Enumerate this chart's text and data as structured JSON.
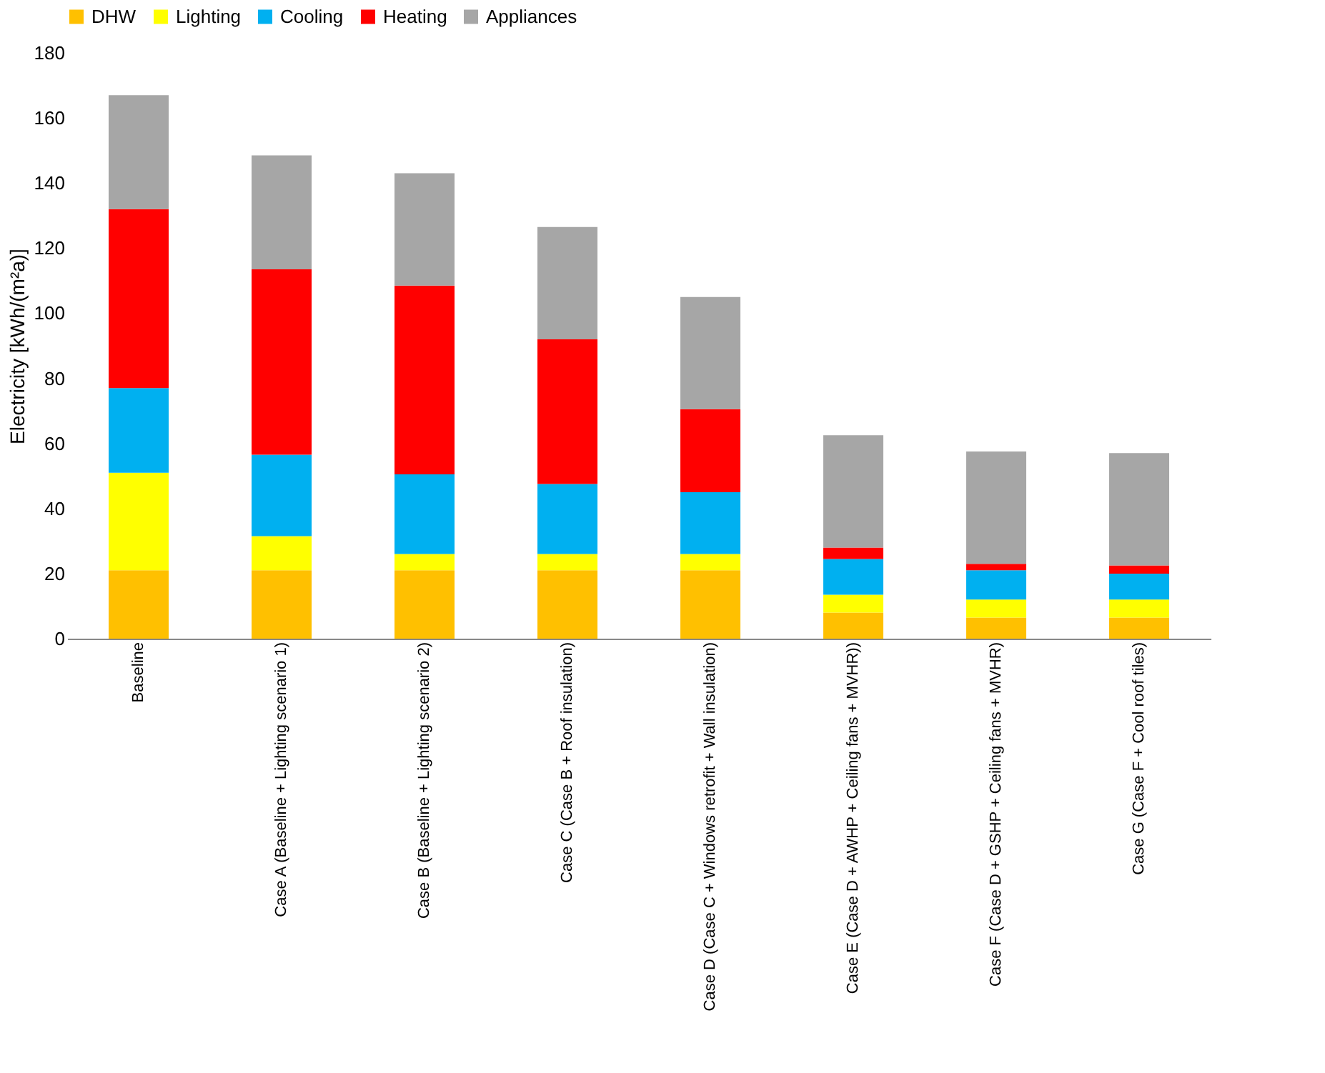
{
  "chart_data": {
    "type": "bar",
    "stacked": true,
    "ylabel": "Electricity [kWh/(m²a)]",
    "categories": [
      "Baseline",
      "Case A (Baseline + Lighting scenario 1)",
      "Case B (Baseline + Lighting scenario 2)",
      "Case C (Case B + Roof insulation)",
      "Case D (Case C + Windows retrofit + Wall insulation)",
      "Case E (Case D + AWHP + Ceiling fans + MVHR))",
      "Case F (Case D + GSHP + Ceiling fans + MVHR)",
      "Case G (Case F + Cool roof tiles)"
    ],
    "series": [
      {
        "name": "DHW",
        "color": "#ffc000",
        "values": [
          21,
          21,
          21,
          21,
          21,
          8,
          6.5,
          6.5
        ]
      },
      {
        "name": "Lighting",
        "color": "#ffff00",
        "values": [
          30,
          10.5,
          5,
          5,
          5,
          5.5,
          5.5,
          5.5
        ]
      },
      {
        "name": "Cooling",
        "color": "#00b0f0",
        "values": [
          26,
          25,
          24.5,
          21.5,
          19,
          11,
          9,
          8
        ]
      },
      {
        "name": "Heating",
        "color": "#ff0000",
        "values": [
          55,
          57,
          58,
          44.5,
          25.5,
          3.5,
          2,
          2.5
        ]
      },
      {
        "name": "Appliances",
        "color": "#a6a6a6",
        "values": [
          35,
          35,
          34.5,
          34.5,
          34.5,
          34.5,
          34.5,
          34.5
        ]
      }
    ],
    "ylim": [
      0,
      180
    ],
    "yticks": [
      0,
      20,
      40,
      60,
      80,
      100,
      120,
      140,
      160,
      180
    ],
    "grid": false,
    "legend": "top"
  }
}
